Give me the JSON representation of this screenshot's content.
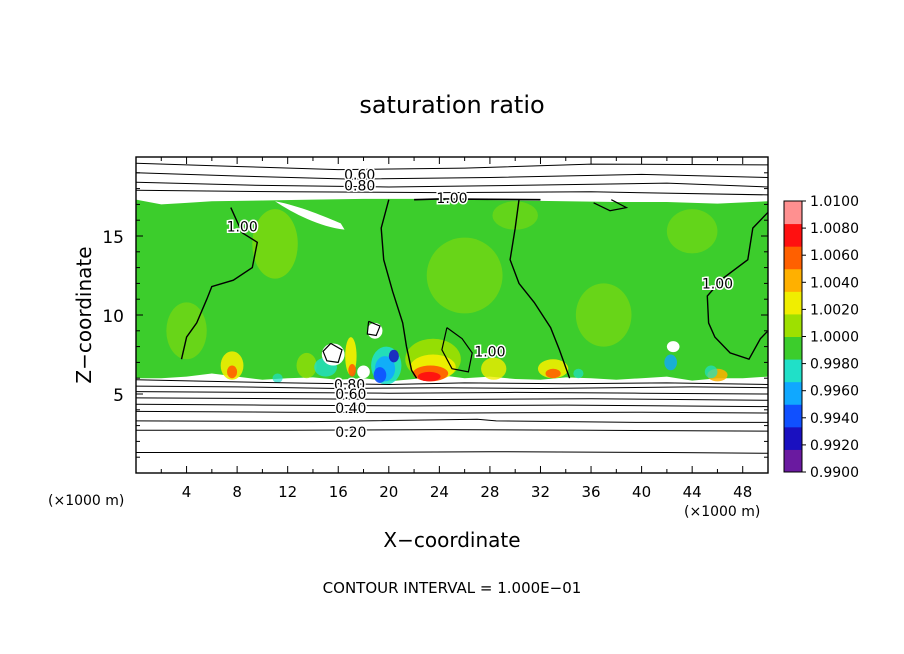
{
  "chart_data": {
    "type": "heatmap",
    "title": "saturation ratio",
    "xlabel": "X−coordinate",
    "ylabel": "Z−coordinate",
    "x_unit": "(×1000 m)",
    "z_unit": "(×1000 m)",
    "xlim": [
      0,
      50
    ],
    "ylim": [
      0,
      20
    ],
    "x_ticks": [
      4,
      8,
      12,
      16,
      20,
      24,
      28,
      32,
      36,
      40,
      44,
      48
    ],
    "y_ticks": [
      5,
      10,
      15
    ],
    "footnote": "CONTOUR INTERVAL = 1.000E−01",
    "colorbar": {
      "min": 0.99,
      "max": 1.01,
      "levels": [
        "1.0100",
        "1.0080",
        "1.0060",
        "1.0040",
        "1.0020",
        "1.0000",
        "0.9980",
        "0.9960",
        "0.9940",
        "0.9920",
        "0.9900"
      ],
      "colors": [
        "#6a1aa0",
        "#1a10c0",
        "#1050ff",
        "#10a8ff",
        "#20e0c8",
        "#3ccd2c",
        "#9ee000",
        "#f0ee00",
        "#ffb000",
        "#ff6000",
        "#ff1010",
        "#ff9090"
      ]
    },
    "contour_labels": [
      {
        "text": "0.60",
        "x": 17.7,
        "z": 18.9
      },
      {
        "text": "0.80",
        "x": 17.7,
        "z": 18.2
      },
      {
        "text": "1.00",
        "x": 25.0,
        "z": 17.4
      },
      {
        "text": "1.00",
        "x": 8.4,
        "z": 15.6
      },
      {
        "text": "1.00",
        "x": 46.0,
        "z": 12.0
      },
      {
        "text": "1.00",
        "x": 28.0,
        "z": 7.7
      },
      {
        "text": "0.80",
        "x": 16.9,
        "z": 5.6
      },
      {
        "text": "0.60",
        "x": 17.0,
        "z": 5.0
      },
      {
        "text": "0.40",
        "x": 17.0,
        "z": 4.1
      },
      {
        "text": "0.20",
        "x": 17.0,
        "z": 2.6
      }
    ]
  }
}
